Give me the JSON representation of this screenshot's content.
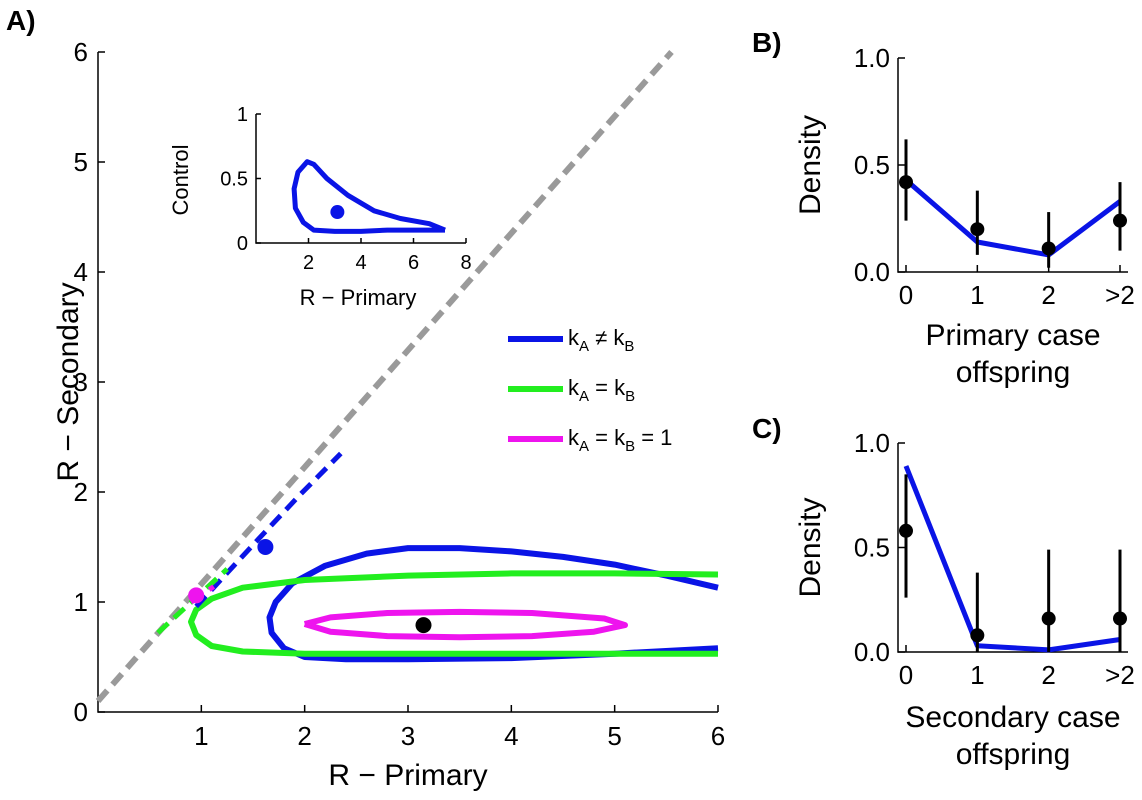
{
  "panel_labels": [
    "A)",
    "B)",
    "C)"
  ],
  "colors": {
    "blue": "#0a14e6",
    "green": "#22ee1f",
    "magenta": "#ee14ee",
    "gray": "#9a9a9a",
    "black": "#000000"
  },
  "chart_data": [
    {
      "panel": "A)",
      "type": "line",
      "xlabel": "R − Primary",
      "ylabel": "R − Secondary",
      "xlim": [
        0,
        6
      ],
      "ylim": [
        0,
        6
      ],
      "xticks": [
        1,
        2,
        3,
        4,
        5,
        6
      ],
      "yticks": [
        0,
        1,
        2,
        3,
        4,
        5,
        6
      ],
      "grid": false,
      "legend_position": "right",
      "series": [
        {
          "name": "kA ≠ kB",
          "legend_main": "k",
          "legend_parts": [
            [
              "k",
              ""
            ],
            [
              "A",
              "sub"
            ],
            [
              " ≠ k",
              ""
            ],
            [
              "B",
              "sub"
            ]
          ],
          "color": "blue",
          "style": "solid",
          "points": [
            [
              6.0,
              0.58
            ],
            [
              5.0,
              0.53
            ],
            [
              4.0,
              0.49
            ],
            [
              3.0,
              0.48
            ],
            [
              2.4,
              0.48
            ],
            [
              2.0,
              0.5
            ],
            [
              1.8,
              0.58
            ],
            [
              1.68,
              0.72
            ],
            [
              1.66,
              0.86
            ],
            [
              1.72,
              1.0
            ],
            [
              1.88,
              1.17
            ],
            [
              2.2,
              1.33
            ],
            [
              2.6,
              1.44
            ],
            [
              3.0,
              1.49
            ],
            [
              3.5,
              1.49
            ],
            [
              4.0,
              1.46
            ],
            [
              4.5,
              1.41
            ],
            [
              5.0,
              1.34
            ],
            [
              5.5,
              1.24
            ],
            [
              6.0,
              1.13
            ]
          ]
        },
        {
          "name": "kA = kB",
          "legend_parts": [
            [
              "k",
              ""
            ],
            [
              "A",
              "sub"
            ],
            [
              " = k",
              ""
            ],
            [
              "B",
              "sub"
            ]
          ],
          "color": "green",
          "style": "solid",
          "points": [
            [
              6.0,
              0.53
            ],
            [
              5.0,
              0.53
            ],
            [
              4.0,
              0.53
            ],
            [
              3.0,
              0.53
            ],
            [
              2.0,
              0.53
            ],
            [
              1.4,
              0.55
            ],
            [
              1.1,
              0.6
            ],
            [
              0.95,
              0.7
            ],
            [
              0.9,
              0.82
            ],
            [
              0.95,
              0.93
            ],
            [
              1.1,
              1.03
            ],
            [
              1.4,
              1.13
            ],
            [
              2.0,
              1.2
            ],
            [
              3.0,
              1.24
            ],
            [
              4.0,
              1.26
            ],
            [
              5.0,
              1.26
            ],
            [
              6.0,
              1.25
            ]
          ]
        },
        {
          "name": "kA = kB = 1",
          "legend_parts": [
            [
              "k",
              ""
            ],
            [
              "A",
              "sub"
            ],
            [
              " = k",
              ""
            ],
            [
              "B",
              "sub"
            ],
            [
              " = 1",
              ""
            ]
          ],
          "color": "magenta",
          "style": "solid",
          "points": [
            [
              2.0,
              0.8
            ],
            [
              2.25,
              0.73
            ],
            [
              2.8,
              0.69
            ],
            [
              3.5,
              0.68
            ],
            [
              4.2,
              0.69
            ],
            [
              4.8,
              0.73
            ],
            [
              5.1,
              0.79
            ],
            [
              4.9,
              0.85
            ],
            [
              4.2,
              0.9
            ],
            [
              3.5,
              0.91
            ],
            [
              2.8,
              0.9
            ],
            [
              2.25,
              0.86
            ],
            [
              2.0,
              0.8
            ]
          ]
        },
        {
          "name": "identity",
          "color": "gray",
          "style": "dashed",
          "points": [
            [
              0.0,
              0.1
            ],
            [
              5.55,
              6.0
            ]
          ]
        },
        {
          "name": "blue-dashed",
          "color": "blue",
          "style": "dashed",
          "points": [
            [
              0.95,
              0.96
            ],
            [
              1.55,
              1.57
            ],
            [
              1.95,
              1.97
            ],
            [
              2.35,
              2.35
            ]
          ]
        },
        {
          "name": "green-dashed",
          "color": "green",
          "style": "dashed",
          "points": [
            [
              0.58,
              0.72
            ],
            [
              1.25,
              1.3
            ]
          ]
        },
        {
          "name": "magenta-dashed",
          "color": "magenta",
          "style": "dashed",
          "points": [
            [
              0.9,
              1.0
            ],
            [
              1.12,
              1.14
            ]
          ]
        }
      ],
      "dots": [
        {
          "x": 1.62,
          "y": 1.5,
          "color": "blue"
        },
        {
          "x": 0.95,
          "y": 1.06,
          "color": "magenta"
        },
        {
          "x": 3.15,
          "y": 0.79,
          "color": "black"
        }
      ]
    },
    {
      "panel": "A-inset",
      "type": "line",
      "xlabel": "R − Primary",
      "ylabel": "Control",
      "xlim": [
        0,
        8
      ],
      "ylim": [
        0,
        1
      ],
      "xticks": [
        2,
        4,
        6,
        8
      ],
      "yticks": [
        0,
        0.5,
        1
      ],
      "ytick_labels": [
        "0",
        "0.5",
        "1"
      ],
      "series": [
        {
          "name": "contour",
          "color": "blue",
          "points": [
            [
              7.2,
              0.1
            ],
            [
              6.0,
              0.1
            ],
            [
              5.0,
              0.1
            ],
            [
              4.0,
              0.09
            ],
            [
              3.0,
              0.09
            ],
            [
              2.2,
              0.1
            ],
            [
              1.8,
              0.16
            ],
            [
              1.5,
              0.27
            ],
            [
              1.45,
              0.42
            ],
            [
              1.6,
              0.55
            ],
            [
              1.95,
              0.63
            ],
            [
              2.2,
              0.61
            ],
            [
              2.7,
              0.5
            ],
            [
              3.5,
              0.37
            ],
            [
              4.5,
              0.25
            ],
            [
              5.5,
              0.19
            ],
            [
              6.6,
              0.15
            ],
            [
              7.2,
              0.1
            ]
          ]
        }
      ],
      "dots": [
        {
          "x": 3.1,
          "y": 0.24,
          "color": "blue"
        }
      ]
    },
    {
      "panel": "B)",
      "type": "line",
      "xlabel_lines": [
        "Primary case",
        "offspring"
      ],
      "ylabel": "Density",
      "ylim": [
        0,
        1
      ],
      "categories": [
        "0",
        "1",
        "2",
        ">2"
      ],
      "yticks": [
        0,
        0.5,
        1
      ],
      "ytick_labels": [
        "0.0",
        "0.5",
        "1.0"
      ],
      "series": [
        {
          "name": "model",
          "color": "blue",
          "values": [
            0.43,
            0.14,
            0.08,
            0.33
          ]
        }
      ],
      "observed": {
        "values": [
          0.42,
          0.2,
          0.11,
          0.24
        ],
        "lower": [
          0.24,
          0.08,
          0.02,
          0.1
        ],
        "upper": [
          0.62,
          0.38,
          0.28,
          0.42
        ]
      }
    },
    {
      "panel": "C)",
      "type": "line",
      "xlabel_lines": [
        "Secondary case",
        "offspring"
      ],
      "ylabel": "Density",
      "ylim": [
        0,
        1
      ],
      "categories": [
        "0",
        "1",
        "2",
        ">2"
      ],
      "yticks": [
        0,
        0.5,
        1
      ],
      "ytick_labels": [
        "0.0",
        "0.5",
        "1.0"
      ],
      "series": [
        {
          "name": "model",
          "color": "blue",
          "values": [
            0.89,
            0.03,
            0.01,
            0.06
          ]
        }
      ],
      "observed": {
        "values": [
          0.58,
          0.08,
          0.16,
          0.16
        ],
        "lower": [
          0.26,
          0.0,
          0.0,
          0.0
        ],
        "upper": [
          0.85,
          0.38,
          0.49,
          0.49
        ]
      }
    }
  ]
}
